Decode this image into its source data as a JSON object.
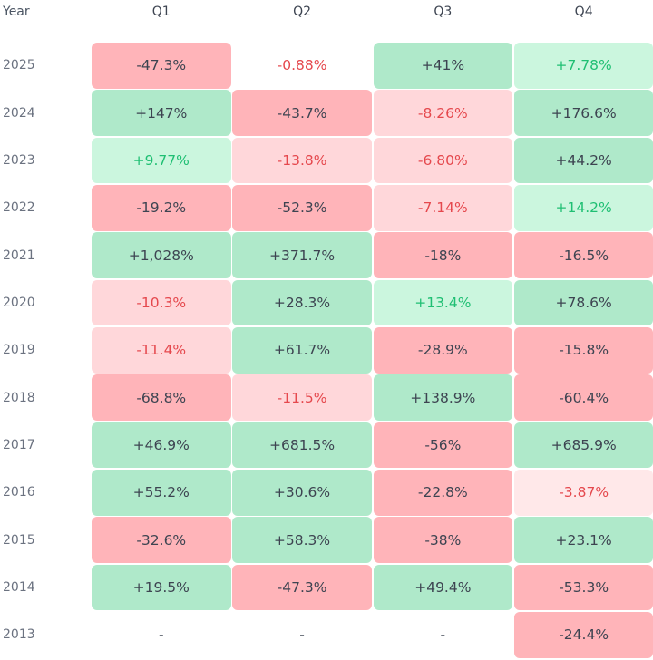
{
  "chart_data": {
    "type": "heatmap",
    "title": "",
    "row_header": "Year",
    "columns": [
      "Q1",
      "Q2",
      "Q3",
      "Q4"
    ],
    "rows": [
      {
        "year": "2025",
        "cells": [
          {
            "text": "-47.3%",
            "tone": "sr"
          },
          {
            "text": "-0.88%",
            "tone": "nr"
          },
          {
            "text": "+41%",
            "tone": "sg"
          },
          {
            "text": "+7.78%",
            "tone": "lg"
          }
        ]
      },
      {
        "year": "2024",
        "cells": [
          {
            "text": "+147%",
            "tone": "sg"
          },
          {
            "text": "-43.7%",
            "tone": "sr"
          },
          {
            "text": "-8.26%",
            "tone": "lr"
          },
          {
            "text": "+176.6%",
            "tone": "sg"
          }
        ]
      },
      {
        "year": "2023",
        "cells": [
          {
            "text": "+9.77%",
            "tone": "lg"
          },
          {
            "text": "-13.8%",
            "tone": "lr"
          },
          {
            "text": "-6.80%",
            "tone": "lr"
          },
          {
            "text": "+44.2%",
            "tone": "sg"
          }
        ]
      },
      {
        "year": "2022",
        "cells": [
          {
            "text": "-19.2%",
            "tone": "sr"
          },
          {
            "text": "-52.3%",
            "tone": "sr"
          },
          {
            "text": "-7.14%",
            "tone": "lr"
          },
          {
            "text": "+14.2%",
            "tone": "lg"
          }
        ]
      },
      {
        "year": "2021",
        "cells": [
          {
            "text": "+1,028%",
            "tone": "sg"
          },
          {
            "text": "+371.7%",
            "tone": "sg"
          },
          {
            "text": "-18%",
            "tone": "sr"
          },
          {
            "text": "-16.5%",
            "tone": "sr"
          }
        ]
      },
      {
        "year": "2020",
        "cells": [
          {
            "text": "-10.3%",
            "tone": "lr"
          },
          {
            "text": "+28.3%",
            "tone": "sg"
          },
          {
            "text": "+13.4%",
            "tone": "lg"
          },
          {
            "text": "+78.6%",
            "tone": "sg"
          }
        ]
      },
      {
        "year": "2019",
        "cells": [
          {
            "text": "-11.4%",
            "tone": "lr"
          },
          {
            "text": "+61.7%",
            "tone": "sg"
          },
          {
            "text": "-28.9%",
            "tone": "sr"
          },
          {
            "text": "-15.8%",
            "tone": "sr"
          }
        ]
      },
      {
        "year": "2018",
        "cells": [
          {
            "text": "-68.8%",
            "tone": "sr"
          },
          {
            "text": "-11.5%",
            "tone": "lr"
          },
          {
            "text": "+138.9%",
            "tone": "sg"
          },
          {
            "text": "-60.4%",
            "tone": "sr"
          }
        ]
      },
      {
        "year": "2017",
        "cells": [
          {
            "text": "+46.9%",
            "tone": "sg"
          },
          {
            "text": "+681.5%",
            "tone": "sg"
          },
          {
            "text": "-56%",
            "tone": "sr"
          },
          {
            "text": "+685.9%",
            "tone": "sg"
          }
        ]
      },
      {
        "year": "2016",
        "cells": [
          {
            "text": "+55.2%",
            "tone": "sg"
          },
          {
            "text": "+30.6%",
            "tone": "sg"
          },
          {
            "text": "-22.8%",
            "tone": "sr"
          },
          {
            "text": "-3.87%",
            "tone": "xr"
          }
        ]
      },
      {
        "year": "2015",
        "cells": [
          {
            "text": "-32.6%",
            "tone": "sr"
          },
          {
            "text": "+58.3%",
            "tone": "sg"
          },
          {
            "text": "-38%",
            "tone": "sr"
          },
          {
            "text": "+23.1%",
            "tone": "sg"
          }
        ]
      },
      {
        "year": "2014",
        "cells": [
          {
            "text": "+19.5%",
            "tone": "sg"
          },
          {
            "text": "-47.3%",
            "tone": "sr"
          },
          {
            "text": "+49.4%",
            "tone": "sg"
          },
          {
            "text": "-53.3%",
            "tone": "sr"
          }
        ]
      },
      {
        "year": "2013",
        "cells": [
          {
            "text": "-",
            "tone": "n"
          },
          {
            "text": "-",
            "tone": "n"
          },
          {
            "text": "-",
            "tone": "n"
          },
          {
            "text": "-24.4%",
            "tone": "sr"
          }
        ]
      }
    ],
    "colors": {
      "strong_red": "#ffb4b9",
      "light_red": "#ffd7da",
      "faint_red": "#ffe8e9",
      "strong_green": "#afe9ca",
      "light_green": "#cbf6de",
      "red_text": "#e5484d",
      "green_text": "#1fbf73"
    }
  }
}
